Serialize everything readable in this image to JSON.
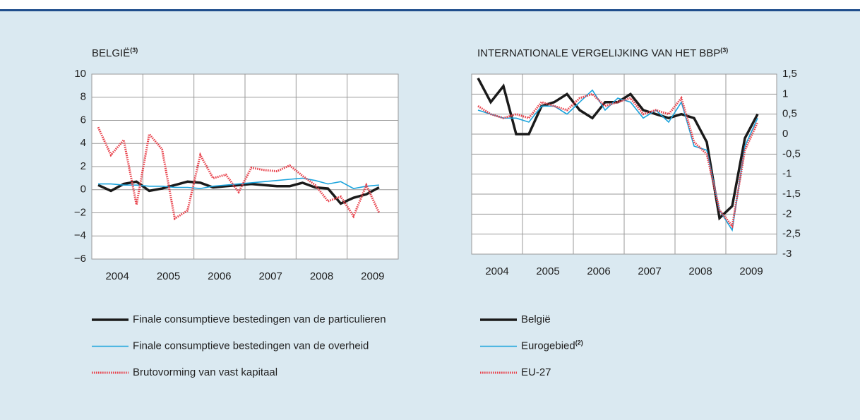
{
  "chart_data": [
    {
      "type": "line",
      "title": "BELGIË",
      "title_note": "(3)",
      "x_labels": [
        "2004",
        "2005",
        "2006",
        "2007",
        "2008",
        "2009"
      ],
      "ylim": [
        -6,
        10
      ],
      "yticks": [
        {
          "value": -6,
          "label": "−6"
        },
        {
          "value": -4,
          "label": "−4"
        },
        {
          "value": -2,
          "label": "−2"
        },
        0,
        2,
        4,
        6,
        8,
        10
      ],
      "y_axis_side": "left",
      "grid": true,
      "series": [
        {
          "name": "Finale consumptieve bestedingen van de particulieren",
          "color": "#1a1a1a",
          "style": "thick",
          "values": [
            0.4,
            -0.1,
            0.5,
            0.7,
            -0.1,
            0.1,
            0.4,
            0.7,
            0.6,
            0.2,
            0.3,
            0.4,
            0.5,
            0.4,
            0.3,
            0.3,
            0.6,
            0.2,
            0.1,
            -1.2,
            -0.7,
            -0.4,
            0.2
          ]
        },
        {
          "name": "Finale consumptieve bestedingen van de overheid",
          "color": "#1aa3dc",
          "style": "thin",
          "values": [
            0.5,
            0.5,
            0.4,
            0.4,
            0.3,
            0.3,
            0.2,
            0.2,
            0.1,
            0.3,
            0.4,
            0.5,
            0.6,
            0.7,
            0.8,
            0.9,
            1.0,
            0.8,
            0.5,
            0.7,
            0.1,
            0.3,
            0.4
          ]
        },
        {
          "name": "Brutovorming van vast kapitaal",
          "color": "#e8404a",
          "style": "dotted",
          "values": [
            5.4,
            3.0,
            4.3,
            -1.3,
            4.8,
            3.5,
            -2.5,
            -1.8,
            3.0,
            1.0,
            1.3,
            -0.2,
            1.9,
            1.7,
            1.6,
            2.1,
            1.2,
            0.4,
            -1.0,
            -0.6,
            -2.3,
            0.4,
            -2.0
          ]
        }
      ]
    },
    {
      "type": "line",
      "title": "INTERNATIONALE VERGELIJKING VAN HET BBP",
      "title_note": "(3)",
      "x_labels": [
        "2004",
        "2005",
        "2006",
        "2007",
        "2008",
        "2009"
      ],
      "ylim": [
        -3,
        1.5
      ],
      "yticks": [
        {
          "value": -3,
          "label": "-3"
        },
        {
          "value": -2.5,
          "label": "-2,5"
        },
        {
          "value": -2,
          "label": "-2"
        },
        {
          "value": -1.5,
          "label": "-1,5"
        },
        {
          "value": -1,
          "label": "-1"
        },
        {
          "value": -0.5,
          "label": "-0,5"
        },
        0,
        {
          "value": 0.5,
          "label": "0,5"
        },
        1,
        {
          "value": 1.5,
          "label": "1,5"
        }
      ],
      "y_axis_side": "right",
      "grid": true,
      "series": [
        {
          "name": "België",
          "color": "#1a1a1a",
          "style": "thick",
          "values": [
            1.4,
            0.8,
            1.2,
            0.0,
            0.0,
            0.7,
            0.8,
            1.0,
            0.6,
            0.4,
            0.8,
            0.8,
            1.0,
            0.6,
            0.5,
            0.4,
            0.5,
            0.4,
            -0.2,
            -2.1,
            -1.8,
            -0.1,
            0.5
          ]
        },
        {
          "name": "Eurogebied",
          "name_note": "(2)",
          "color": "#1aa3dc",
          "style": "thin",
          "values": [
            0.6,
            0.5,
            0.4,
            0.4,
            0.3,
            0.7,
            0.7,
            0.5,
            0.8,
            1.1,
            0.6,
            0.9,
            0.8,
            0.4,
            0.6,
            0.3,
            0.8,
            -0.3,
            -0.4,
            -1.9,
            -2.4,
            -0.3,
            0.4
          ]
        },
        {
          "name": "EU-27",
          "color": "#e8404a",
          "style": "dotted",
          "values": [
            0.7,
            0.5,
            0.4,
            0.5,
            0.4,
            0.8,
            0.7,
            0.6,
            0.9,
            1.0,
            0.7,
            0.8,
            0.9,
            0.5,
            0.6,
            0.5,
            0.9,
            -0.2,
            -0.5,
            -1.9,
            -2.3,
            -0.4,
            0.3
          ]
        }
      ]
    }
  ]
}
